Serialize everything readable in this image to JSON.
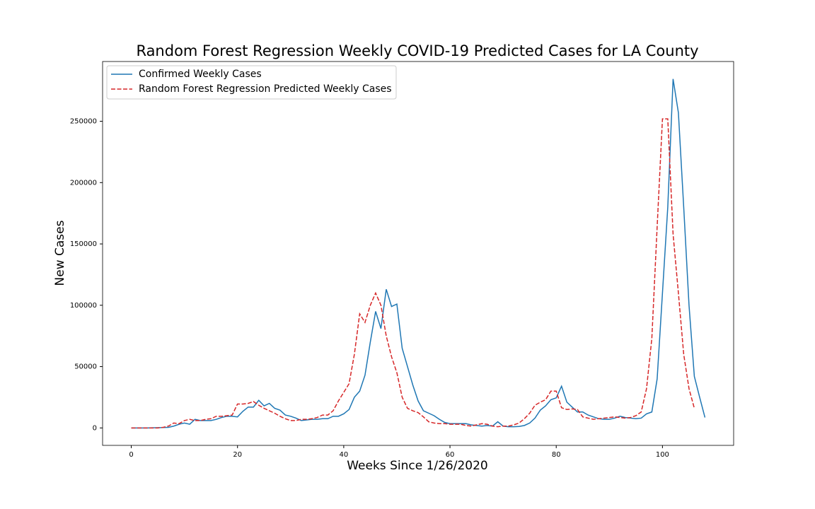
{
  "chart_data": {
    "type": "line",
    "title": "Random Forest Regression Weekly COVID-19 Predicted Cases for LA County",
    "x_label": "Weeks Since 1/26/2020",
    "y_label": "New Cases",
    "xlim": [
      -5.4,
      113.4
    ],
    "ylim": [
      -14225,
      298725
    ],
    "xticks": [
      0,
      20,
      40,
      60,
      80,
      100
    ],
    "yticks": [
      0,
      50000,
      100000,
      150000,
      200000,
      250000
    ],
    "legend": "upper left",
    "series": [
      {
        "name": "Confirmed Weekly Cases",
        "color": "#1f77b4",
        "dash": "solid",
        "x": [
          0,
          1,
          2,
          3,
          4,
          5,
          6,
          7,
          8,
          9,
          10,
          11,
          12,
          13,
          14,
          15,
          16,
          17,
          18,
          19,
          20,
          21,
          22,
          23,
          24,
          25,
          26,
          27,
          28,
          29,
          30,
          31,
          32,
          33,
          34,
          35,
          36,
          37,
          38,
          39,
          40,
          41,
          42,
          43,
          44,
          45,
          46,
          47,
          48,
          49,
          50,
          51,
          52,
          53,
          54,
          55,
          56,
          57,
          58,
          59,
          60,
          61,
          62,
          63,
          64,
          65,
          66,
          67,
          68,
          69,
          70,
          71,
          72,
          73,
          74,
          75,
          76,
          77,
          78,
          79,
          80,
          81,
          82,
          83,
          84,
          85,
          86,
          87,
          88,
          89,
          90,
          91,
          92,
          93,
          94,
          95,
          96,
          97,
          98,
          99,
          100,
          101,
          102,
          103,
          104,
          105,
          106,
          107,
          108
        ],
        "values": [
          0,
          0,
          0,
          0,
          100,
          200,
          300,
          500,
          1500,
          3000,
          4000,
          3000,
          7000,
          6000,
          6000,
          6000,
          7000,
          8500,
          9500,
          9500,
          9000,
          13500,
          17000,
          17000,
          22500,
          18000,
          20000,
          16000,
          14500,
          10500,
          9500,
          8000,
          6000,
          6500,
          7000,
          7000,
          7500,
          7500,
          9500,
          9500,
          11500,
          15000,
          25000,
          30000,
          43000,
          70000,
          95000,
          81000,
          113000,
          99000,
          101000,
          65000,
          50000,
          35000,
          22000,
          14000,
          12000,
          10000,
          7000,
          4500,
          3500,
          3500,
          3500,
          3500,
          2500,
          2000,
          1500,
          2000,
          1500,
          5000,
          1500,
          1000,
          1000,
          1200,
          2000,
          4000,
          8000,
          14500,
          18000,
          23000,
          24500,
          34000,
          21000,
          17000,
          13000,
          13000,
          10500,
          9000,
          7500,
          7000,
          7000,
          8000,
          9500,
          8500,
          8000,
          7500,
          8000,
          11500,
          13000,
          40000,
          110000,
          180000,
          284500,
          257000,
          180000,
          100000,
          42000,
          25000,
          8500
        ]
      },
      {
        "name": "Random Forest Regression Predicted Weekly Cases",
        "color": "#d62728",
        "dash": "dashed",
        "x": [
          0,
          1,
          2,
          3,
          4,
          5,
          6,
          7,
          8,
          9,
          10,
          11,
          12,
          13,
          14,
          15,
          16,
          17,
          18,
          19,
          20,
          21,
          22,
          23,
          24,
          25,
          26,
          27,
          28,
          29,
          30,
          31,
          32,
          33,
          34,
          35,
          36,
          37,
          38,
          39,
          40,
          41,
          42,
          43,
          44,
          45,
          46,
          47,
          48,
          49,
          50,
          51,
          52,
          53,
          54,
          55,
          56,
          57,
          58,
          59,
          60,
          61,
          62,
          63,
          64,
          65,
          66,
          67,
          68,
          69,
          70,
          71,
          72,
          73,
          74,
          75,
          76,
          77,
          78,
          79,
          80,
          81,
          82,
          83,
          84,
          85,
          86,
          87,
          88,
          89,
          90,
          91,
          92,
          93,
          94,
          95,
          96,
          97,
          98,
          99,
          100,
          101,
          102,
          103,
          104,
          105,
          106
        ],
        "values": [
          0,
          0,
          0,
          0,
          0,
          0,
          500,
          1500,
          4000,
          3500,
          6000,
          7000,
          6000,
          6000,
          7000,
          7500,
          9500,
          9500,
          10000,
          10500,
          19500,
          19500,
          20000,
          21500,
          18500,
          16000,
          14000,
          12000,
          9500,
          7500,
          6000,
          6000,
          7000,
          7000,
          7500,
          8500,
          10500,
          10500,
          14000,
          22000,
          29000,
          36000,
          60000,
          93000,
          86000,
          100000,
          110000,
          100000,
          75000,
          58000,
          45000,
          25000,
          16000,
          14000,
          12500,
          9000,
          5000,
          4000,
          3500,
          3500,
          3000,
          3000,
          3000,
          2000,
          1500,
          2500,
          3500,
          3000,
          1500,
          1000,
          1500,
          1500,
          2500,
          4000,
          7500,
          12000,
          18500,
          21000,
          23000,
          30000,
          30000,
          16500,
          15000,
          15500,
          15000,
          9000,
          8000,
          7000,
          7500,
          8000,
          8500,
          9000,
          8500,
          8000,
          8500,
          10000,
          13000,
          32000,
          73000,
          164000,
          252000,
          252000,
          158000,
          110000,
          60000,
          32000,
          16000
        ]
      }
    ]
  }
}
